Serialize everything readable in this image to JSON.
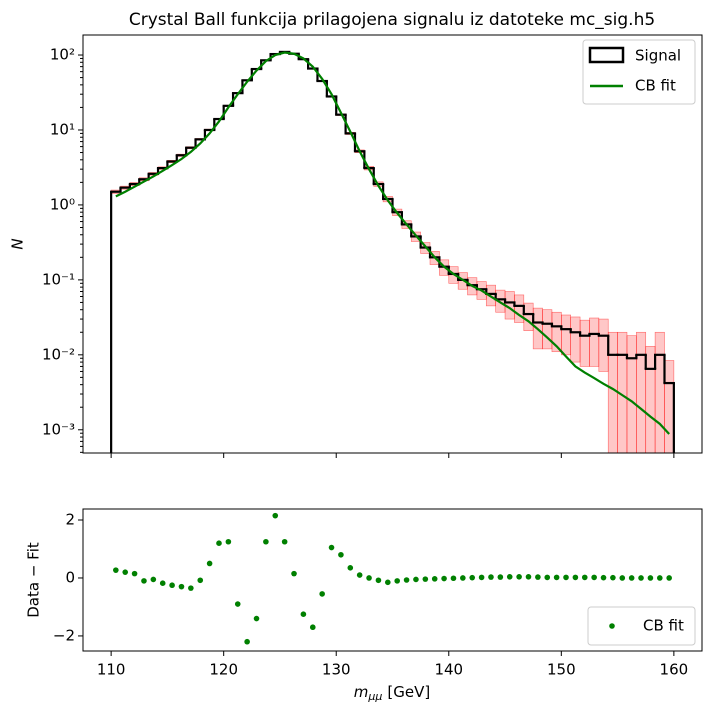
{
  "chart_data": [
    {
      "type": "histogram",
      "title": "Crystal Ball funkcija prilagojena signalu iz datoteke mc_sig.h5",
      "ylabel": "N",
      "log_y": true,
      "name": "Signal",
      "color": "#000000",
      "error_color": "#ff0000",
      "bins": [
        110,
        110.833,
        111.667,
        112.5,
        113.333,
        114.167,
        115,
        115.833,
        116.667,
        117.5,
        118.333,
        119.167,
        120,
        120.833,
        121.667,
        122.5,
        123.333,
        124.167,
        125,
        125.833,
        126.667,
        127.5,
        128.333,
        129.167,
        130,
        130.833,
        131.667,
        132.5,
        133.333,
        134.167,
        135,
        135.833,
        136.667,
        137.5,
        138.333,
        139.167,
        140,
        140.833,
        141.667,
        142.5,
        143.333,
        144.167,
        145,
        145.833,
        146.667,
        147.5,
        148.333,
        149.167,
        150,
        150.833,
        151.667,
        152.5,
        153.333,
        154.167,
        155,
        155.833,
        156.667,
        157.5,
        158.333,
        159.167,
        160
      ],
      "values": [
        1.5,
        1.7,
        1.9,
        2.2,
        2.6,
        3.1,
        3.8,
        4.6,
        5.8,
        7.5,
        10,
        14,
        21,
        31,
        46,
        65,
        85,
        103,
        110,
        104,
        88,
        66,
        45,
        28,
        16,
        9,
        5.2,
        3.1,
        1.9,
        1.2,
        0.8,
        0.55,
        0.38,
        0.27,
        0.2,
        0.15,
        0.12,
        0.1,
        0.085,
        0.075,
        0.065,
        0.055,
        0.05,
        0.045,
        0.035,
        0.027,
        0.026,
        0.024,
        0.022,
        0.02,
        0.018,
        0.019,
        0.018,
        0.01,
        0.01,
        0.009,
        0.01,
        0.0065,
        0.01,
        0.0042
      ],
      "errors": [
        0.08,
        0.08,
        0.09,
        0.1,
        0.11,
        0.12,
        0.14,
        0.16,
        0.18,
        0.2,
        0.25,
        0.3,
        0.4,
        0.5,
        0.6,
        0.7,
        0.8,
        0.9,
        0.95,
        0.9,
        0.85,
        0.75,
        0.6,
        0.5,
        0.4,
        0.3,
        0.22,
        0.17,
        0.13,
        0.1,
        0.08,
        0.065,
        0.055,
        0.045,
        0.04,
        0.035,
        0.03,
        0.025,
        0.022,
        0.02,
        0.02,
        0.018,
        0.02,
        0.018,
        0.014,
        0.015,
        0.014,
        0.013,
        0.012,
        0.012,
        0.011,
        0.012,
        0.012,
        0.01,
        0.01,
        0.009,
        0.01,
        0.0065,
        0.01,
        0.0042
      ],
      "fit": {
        "name": "CB fit",
        "color": "#008000",
        "x": [
          110.417,
          111.25,
          112.083,
          112.917,
          113.75,
          114.583,
          115.417,
          116.25,
          117.083,
          117.917,
          118.75,
          119.583,
          120.417,
          121.25,
          122.083,
          122.917,
          123.75,
          124.583,
          125.417,
          126.25,
          127.083,
          127.917,
          128.75,
          129.583,
          130.417,
          131.25,
          132.083,
          132.917,
          133.75,
          134.583,
          135.417,
          136.25,
          137.083,
          137.917,
          138.75,
          139.583,
          140.417,
          141.25,
          142.083,
          142.917,
          143.75,
          144.583,
          145.417,
          146.25,
          147.083,
          147.917,
          148.75,
          149.583,
          150.417,
          151.25,
          152.083,
          152.917,
          153.75,
          154.583,
          155.417,
          156.25,
          157.083,
          157.917,
          158.75,
          159.583
        ],
        "values": [
          1.3,
          1.5,
          1.75,
          2.05,
          2.4,
          2.85,
          3.4,
          4.1,
          5.1,
          6.6,
          9,
          13,
          20,
          30,
          44,
          62,
          83,
          100,
          108,
          104,
          90,
          70,
          48,
          30,
          17,
          9.5,
          5.2,
          3,
          1.8,
          1.15,
          0.78,
          0.55,
          0.39,
          0.28,
          0.2,
          0.15,
          0.12,
          0.1,
          0.083,
          0.072,
          0.06,
          0.05,
          0.042,
          0.034,
          0.028,
          0.022,
          0.017,
          0.013,
          0.0095,
          0.007,
          0.0058,
          0.0049,
          0.0041,
          0.0035,
          0.0029,
          0.0024,
          0.0019,
          0.0015,
          0.0012,
          0.00088
        ]
      },
      "xlim": [
        107.5,
        162.5
      ],
      "xticks": [
        110,
        120,
        130,
        140,
        150,
        160
      ],
      "ylim": [
        0.00049,
        185
      ],
      "yticks": [
        {
          "value": 0.001,
          "label": "10⁻³"
        },
        {
          "value": 0.01,
          "label": "10⁻²"
        },
        {
          "value": 0.1,
          "label": "10⁻¹"
        },
        {
          "value": 1,
          "label": "10⁰"
        },
        {
          "value": 10,
          "label": "10¹"
        },
        {
          "value": 100,
          "label": "10²"
        }
      ],
      "legend": "upper right"
    },
    {
      "type": "scatter",
      "xlabel": {
        "symbol": "m",
        "subscript": "μμ",
        "unit": "[GeV]"
      },
      "ylabel": "Data − Fit",
      "name": "CB fit",
      "color": "#008000",
      "x": [
        110.417,
        111.25,
        112.083,
        112.917,
        113.75,
        114.583,
        115.417,
        116.25,
        117.083,
        117.917,
        118.75,
        119.583,
        120.417,
        121.25,
        122.083,
        122.917,
        123.75,
        124.583,
        125.417,
        126.25,
        127.083,
        127.917,
        128.75,
        129.583,
        130.417,
        131.25,
        132.083,
        132.917,
        133.75,
        134.583,
        135.417,
        136.25,
        137.083,
        137.917,
        138.75,
        139.583,
        140.417,
        141.25,
        142.083,
        142.917,
        143.75,
        144.583,
        145.417,
        146.25,
        147.083,
        147.917,
        148.75,
        149.583,
        150.417,
        151.25,
        152.083,
        152.917,
        153.75,
        154.583,
        155.417,
        156.25,
        157.083,
        157.917,
        158.75,
        159.583
      ],
      "values": [
        0.27,
        0.2,
        0.15,
        -0.1,
        -0.05,
        -0.18,
        -0.25,
        -0.3,
        -0.35,
        -0.08,
        0.5,
        1.2,
        1.25,
        -0.9,
        -2.2,
        -1.4,
        1.25,
        2.15,
        1.25,
        0.15,
        -1.25,
        -1.7,
        -0.55,
        1.05,
        0.8,
        0.35,
        0.1,
        0,
        -0.08,
        -0.15,
        -0.1,
        -0.07,
        -0.05,
        -0.04,
        -0.03,
        -0.02,
        -0.01,
        0,
        0.01,
        0.02,
        0.03,
        0.03,
        0.04,
        0.04,
        0.04,
        0.03,
        0.02,
        0.02,
        0.02,
        0.02,
        0.02,
        0.02,
        0.01,
        0.01,
        0,
        0,
        0,
        0,
        0,
        0
      ],
      "xlim": [
        107.5,
        162.5
      ],
      "xticks": [
        110,
        120,
        130,
        140,
        150,
        160
      ],
      "ylim": [
        -2.52,
        2.38
      ],
      "yticks": [
        {
          "value": -2,
          "label": "−2"
        },
        0,
        2
      ],
      "legend": "lower right"
    }
  ]
}
